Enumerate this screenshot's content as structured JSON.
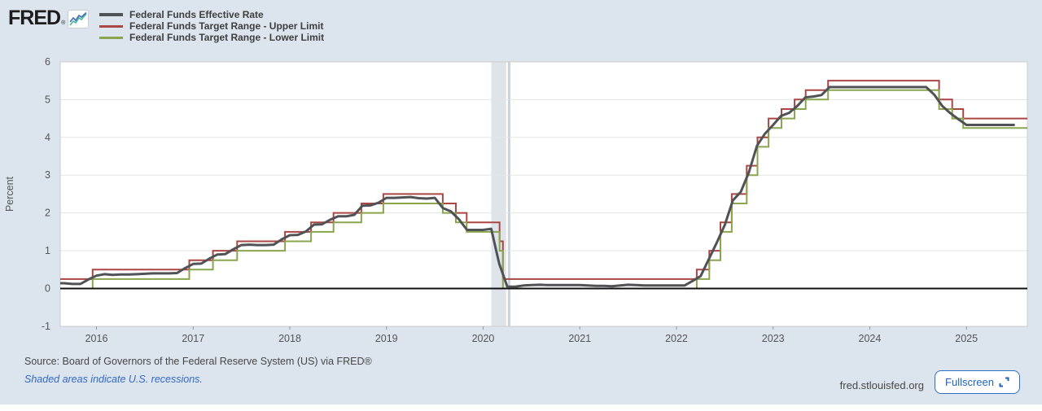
{
  "header": {
    "logo": "FRED",
    "registered": "®"
  },
  "footer": {
    "source": "Source: Board of Governors of the Federal Reserve System (US) via FRED®",
    "recession_note": "Shaded areas indicate U.S. recessions.",
    "site": "fred.stlouisfed.org",
    "fullscreen_label": "Fullscreen"
  },
  "colors": {
    "page_bg": "#dce4ee",
    "plot_bg": "#ffffff",
    "plot_border": "#cccccc",
    "gridline": "#e5e5e5",
    "zero_line": "#111111",
    "axis_text": "#555555",
    "tick": "#999999",
    "recession_band": "#dfe4ea",
    "recession_band_2": "#ccd2da",
    "link_blue": "#3169c6",
    "button_blue": "#1e63bd"
  },
  "chart_data": {
    "type": "line",
    "ylabel": "Percent",
    "y_range": [
      -1,
      6
    ],
    "x_range": [
      2015.625,
      2025.63
    ],
    "y_ticks": [
      -1,
      0,
      1,
      2,
      3,
      4,
      5,
      6
    ],
    "x_ticks": [
      2016,
      2017,
      2018,
      2019,
      2020,
      2021,
      2022,
      2023,
      2024,
      2025
    ],
    "grid": "horizontal-only",
    "legend_position": "top-left",
    "recession_bands": [
      {
        "start": 2020.084,
        "end": 2020.238
      },
      {
        "start": 2020.256,
        "end": 2020.282
      }
    ],
    "series": [
      {
        "name": "Federal Funds Effective Rate",
        "color": "#505256",
        "line_width": 3,
        "kind": "monthly",
        "start_year": 2015,
        "start_month": 8,
        "values": [
          0.14,
          0.14,
          0.12,
          0.12,
          0.24,
          0.34,
          0.38,
          0.36,
          0.37,
          0.37,
          0.38,
          0.39,
          0.4,
          0.4,
          0.4,
          0.41,
          0.54,
          0.65,
          0.66,
          0.79,
          0.9,
          0.91,
          1.04,
          1.15,
          1.16,
          1.15,
          1.15,
          1.16,
          1.3,
          1.41,
          1.42,
          1.51,
          1.69,
          1.7,
          1.82,
          1.91,
          1.91,
          1.95,
          2.19,
          2.2,
          2.27,
          2.4,
          2.4,
          2.41,
          2.42,
          2.39,
          2.38,
          2.4,
          2.13,
          2.04,
          1.83,
          1.55,
          1.55,
          1.55,
          1.58,
          0.65,
          0.05,
          0.05,
          0.08,
          0.09,
          0.1,
          0.09,
          0.09,
          0.09,
          0.09,
          0.09,
          0.08,
          0.07,
          0.07,
          0.06,
          0.08,
          0.1,
          0.09,
          0.08,
          0.08,
          0.08,
          0.08,
          0.08,
          0.08,
          0.2,
          0.33,
          0.77,
          1.21,
          1.68,
          2.33,
          2.56,
          3.08,
          3.78,
          4.1,
          4.33,
          4.57,
          4.65,
          4.83,
          5.06,
          5.08,
          5.12,
          5.33,
          5.33,
          5.33,
          5.33,
          5.33,
          5.33,
          5.33,
          5.33,
          5.33,
          5.33,
          5.33,
          5.33,
          5.33,
          5.13,
          4.83,
          4.64,
          4.48,
          4.33,
          4.33,
          4.33,
          4.33,
          4.33,
          4.33,
          4.33
        ]
      },
      {
        "name": "Federal Funds Target Range - Upper Limit",
        "color": "#aa4643",
        "line_width": 2,
        "kind": "step",
        "initial": 0.25,
        "dates": [
          2015.96,
          2016.96,
          2017.205,
          2017.455,
          2017.95,
          2018.22,
          2018.452,
          2018.74,
          2018.968,
          2019.582,
          2019.718,
          2019.83,
          2020.17,
          2020.205,
          2022.21,
          2022.34,
          2022.455,
          2022.572,
          2022.727,
          2022.838,
          2022.953,
          2023.087,
          2023.222,
          2023.337,
          2023.568,
          2024.717,
          2024.853,
          2024.966
        ],
        "values": [
          0.5,
          0.75,
          1.0,
          1.25,
          1.5,
          1.75,
          2.0,
          2.25,
          2.5,
          2.25,
          2.0,
          1.75,
          1.25,
          0.25,
          0.5,
          1.0,
          1.75,
          2.5,
          3.25,
          4.0,
          4.5,
          4.75,
          5.0,
          5.25,
          5.5,
          5.0,
          4.75,
          4.5
        ]
      },
      {
        "name": "Federal Funds Target Range - Lower Limit",
        "color": "#89a54e",
        "line_width": 2,
        "kind": "step",
        "initial": 0.0,
        "dates": [
          2015.96,
          2016.96,
          2017.205,
          2017.455,
          2017.95,
          2018.22,
          2018.452,
          2018.74,
          2018.968,
          2019.582,
          2019.718,
          2019.83,
          2020.17,
          2020.205,
          2022.21,
          2022.34,
          2022.455,
          2022.572,
          2022.727,
          2022.838,
          2022.953,
          2023.087,
          2023.222,
          2023.337,
          2023.568,
          2024.717,
          2024.853,
          2024.966
        ],
        "values": [
          0.25,
          0.5,
          0.75,
          1.0,
          1.25,
          1.5,
          1.75,
          2.0,
          2.25,
          2.0,
          1.75,
          1.5,
          1.0,
          0.0,
          0.25,
          0.75,
          1.5,
          2.25,
          3.0,
          3.75,
          4.25,
          4.5,
          4.75,
          5.0,
          5.25,
          4.75,
          4.5,
          4.25
        ]
      }
    ]
  }
}
